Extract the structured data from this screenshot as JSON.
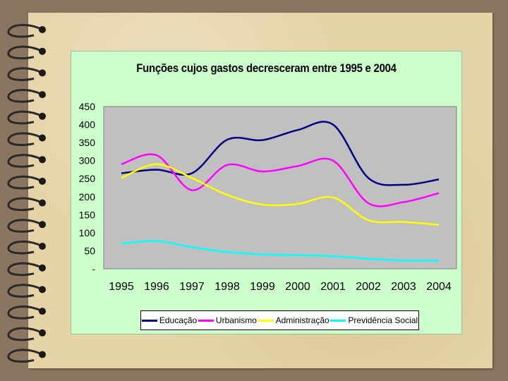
{
  "chart_data": {
    "type": "line",
    "title": "Funções cujos gastos decresceram entre 1995 e 2004",
    "xlabel": "",
    "ylabel": "",
    "x": [
      "1995",
      "1996",
      "1997",
      "1998",
      "1999",
      "2000",
      "2001",
      "2002",
      "2003",
      "2004"
    ],
    "ylim": [
      0,
      450
    ],
    "yticks": [
      0,
      50,
      100,
      150,
      200,
      250,
      300,
      350,
      400,
      450
    ],
    "ytick_labels": [
      "-",
      "50",
      "100",
      "150",
      "200",
      "250",
      "300",
      "350",
      "400",
      "450"
    ],
    "grid": false,
    "legend_position": "bottom",
    "series": [
      {
        "name": "Educação",
        "color": "#000080",
        "values": [
          265,
          275,
          265,
          358,
          357,
          385,
          400,
          252,
          233,
          248
        ]
      },
      {
        "name": "Urbanismo",
        "color": "#ff00ff",
        "values": [
          290,
          315,
          218,
          288,
          270,
          285,
          300,
          182,
          185,
          210
        ]
      },
      {
        "name": "Administração",
        "color": "#ffff00",
        "values": [
          252,
          290,
          252,
          205,
          178,
          180,
          198,
          135,
          130,
          122
        ]
      },
      {
        "name": "Previdência Social",
        "color": "#00ffff",
        "values": [
          70,
          77,
          60,
          47,
          40,
          38,
          35,
          28,
          23,
          23
        ]
      }
    ],
    "plot_background": "#c0c0c0",
    "panel_background": "#ccffcc"
  }
}
